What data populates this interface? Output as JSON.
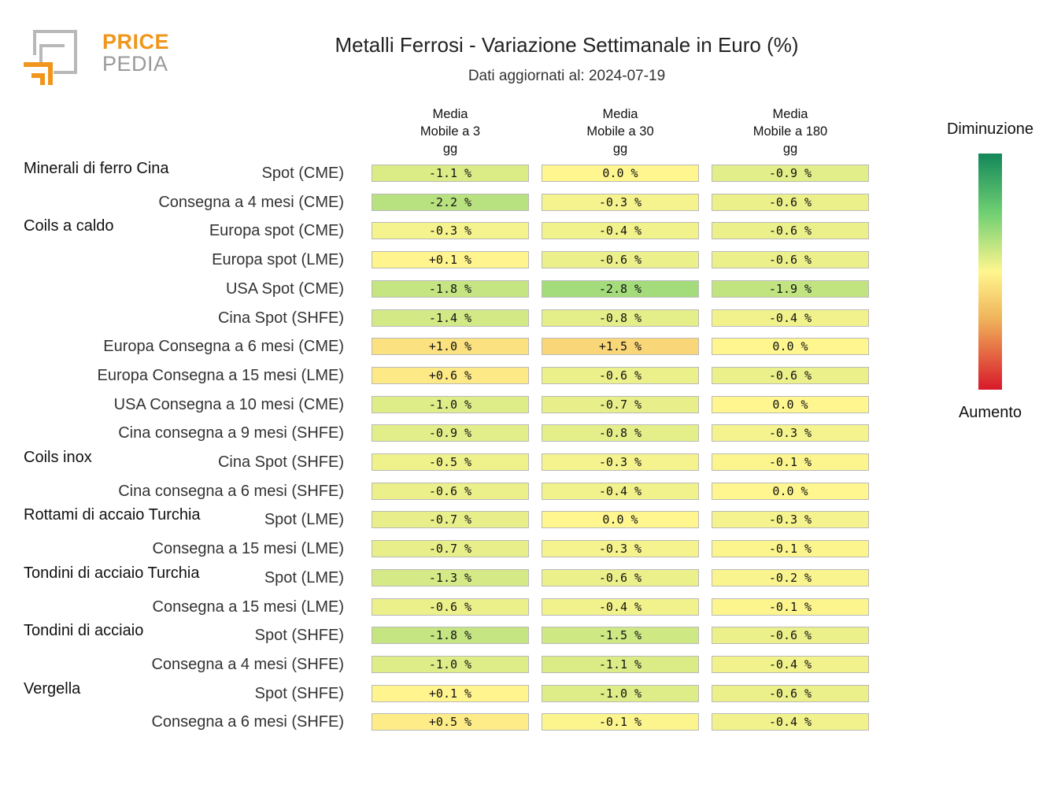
{
  "logo": {
    "word_top": "PRICE",
    "word_bottom": "PEDIA"
  },
  "title": "Metalli Ferrosi - Variazione Settimanale in Euro (%)",
  "subtitle": "Dati aggiornati al: 2024-07-19",
  "legend": {
    "top": "Diminuzione",
    "bottom": "Aumento"
  },
  "colors": {
    "decrease_strong": "#13875a",
    "neutral": "#fff68f",
    "increase_strong": "#d8192a",
    "brand_orange": "#f0961c"
  },
  "chart_data": {
    "type": "heatmap",
    "title": "Metalli Ferrosi - Variazione Settimanale in Euro (%)",
    "subtitle": "Dati aggiornati al: 2024-07-19",
    "columns": [
      "Media\nMobile a 3\ngg",
      "Media\nMobile a 30\ngg",
      "Media\nMobile a 180\ngg"
    ],
    "groups": [
      {
        "name": "Minerali di ferro Cina",
        "rows": [
          {
            "label": "Spot (CME)",
            "values": [
              -1.1,
              0.0,
              -0.9
            ]
          },
          {
            "label": "Consegna a 4 mesi (CME)",
            "values": [
              -2.2,
              -0.3,
              -0.6
            ]
          }
        ]
      },
      {
        "name": "Coils a caldo",
        "rows": [
          {
            "label": "Europa spot (CME)",
            "values": [
              -0.3,
              -0.4,
              -0.6
            ]
          },
          {
            "label": "Europa spot (LME)",
            "values": [
              0.1,
              -0.6,
              -0.6
            ]
          },
          {
            "label": "USA Spot (CME)",
            "values": [
              -1.8,
              -2.8,
              -1.9
            ]
          },
          {
            "label": "Cina Spot (SHFE)",
            "values": [
              -1.4,
              -0.8,
              -0.4
            ]
          },
          {
            "label": "Europa Consegna a 6 mesi (CME)",
            "values": [
              1.0,
              1.5,
              0.0
            ]
          },
          {
            "label": "Europa Consegna a 15 mesi (LME)",
            "values": [
              0.6,
              -0.6,
              -0.6
            ]
          },
          {
            "label": "USA Consegna a 10 mesi (CME)",
            "values": [
              -1.0,
              -0.7,
              0.0
            ]
          },
          {
            "label": "Cina consegna a 9 mesi (SHFE)",
            "values": [
              -0.9,
              -0.8,
              -0.3
            ]
          }
        ]
      },
      {
        "name": "Coils inox",
        "rows": [
          {
            "label": "Cina Spot (SHFE)",
            "values": [
              -0.5,
              -0.3,
              -0.1
            ]
          },
          {
            "label": "Cina consegna a 6 mesi (SHFE)",
            "values": [
              -0.6,
              -0.4,
              0.0
            ]
          }
        ]
      },
      {
        "name": "Rottami di accaio Turchia",
        "rows": [
          {
            "label": "Spot (LME)",
            "values": [
              -0.7,
              0.0,
              -0.3
            ]
          },
          {
            "label": "Consegna a 15 mesi (LME)",
            "values": [
              -0.7,
              -0.3,
              -0.1
            ]
          }
        ]
      },
      {
        "name": "Tondini di acciaio Turchia",
        "rows": [
          {
            "label": "Spot (LME)",
            "values": [
              -1.3,
              -0.6,
              -0.2
            ]
          },
          {
            "label": "Consegna a 15 mesi (LME)",
            "values": [
              -0.6,
              -0.4,
              -0.1
            ]
          }
        ]
      },
      {
        "name": "Tondini di acciaio",
        "rows": [
          {
            "label": "Spot (SHFE)",
            "values": [
              -1.8,
              -1.5,
              -0.6
            ]
          },
          {
            "label": "Consegna a 4 mesi (SHFE)",
            "values": [
              -1.0,
              -1.1,
              -0.4
            ]
          }
        ]
      },
      {
        "name": "Vergella",
        "rows": [
          {
            "label": "Spot (SHFE)",
            "values": [
              0.1,
              -1.0,
              -0.6
            ]
          },
          {
            "label": "Consegna a 6 mesi (SHFE)",
            "values": [
              0.5,
              -0.1,
              -0.4
            ]
          }
        ]
      }
    ],
    "value_format": "percent_signed_1dp",
    "color_scale": {
      "min": -6,
      "max": 6,
      "low_color": "green",
      "mid_color": "yellow",
      "high_color": "red"
    },
    "legend_placement": "right"
  }
}
